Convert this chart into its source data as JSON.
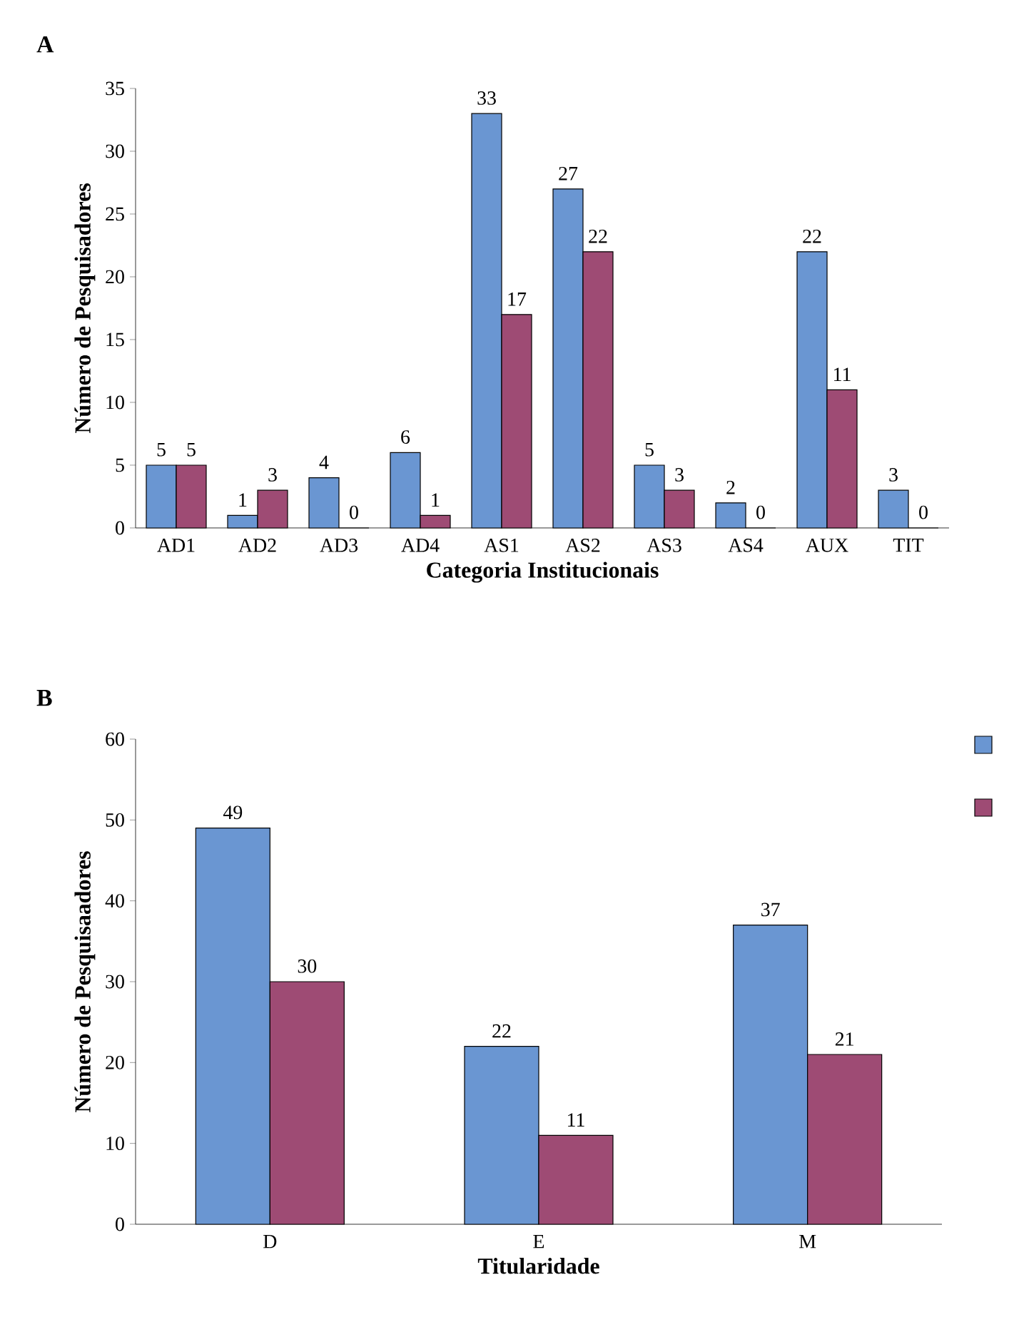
{
  "chart_data": [
    {
      "type": "bar",
      "title": "A",
      "xlabel": "Categoria Institucionais",
      "ylabel": "Número de Pesquisadores",
      "categories": [
        "AD1",
        "AD2",
        "AD3",
        "AD4",
        "AS1",
        "AS2",
        "AS3",
        "AS4",
        "AUX",
        "TIT"
      ],
      "series": [
        {
          "color": "#6a96d2",
          "values": [
            5,
            1,
            4,
            6,
            33,
            27,
            5,
            2,
            22,
            3
          ]
        },
        {
          "color": "#9e4b74",
          "values": [
            5,
            3,
            0,
            1,
            17,
            22,
            3,
            0,
            11,
            0
          ]
        }
      ],
      "ylim": [
        0,
        35
      ],
      "yticks": [
        0,
        5,
        10,
        15,
        20,
        25,
        30,
        35
      ],
      "data_labels": true,
      "legend": false
    },
    {
      "type": "bar",
      "title": "B",
      "xlabel": "Titularidade",
      "ylabel": "Número de Pesquisaadores",
      "categories": [
        "D",
        "E",
        "M"
      ],
      "series": [
        {
          "color": "#6a96d2",
          "values": [
            49,
            22,
            37
          ]
        },
        {
          "color": "#9e4b74",
          "values": [
            30,
            11,
            21
          ]
        }
      ],
      "ylim": [
        0,
        60
      ],
      "yticks": [
        0,
        10,
        20,
        30,
        40,
        50,
        60
      ],
      "data_labels": true,
      "legend": false
    }
  ]
}
